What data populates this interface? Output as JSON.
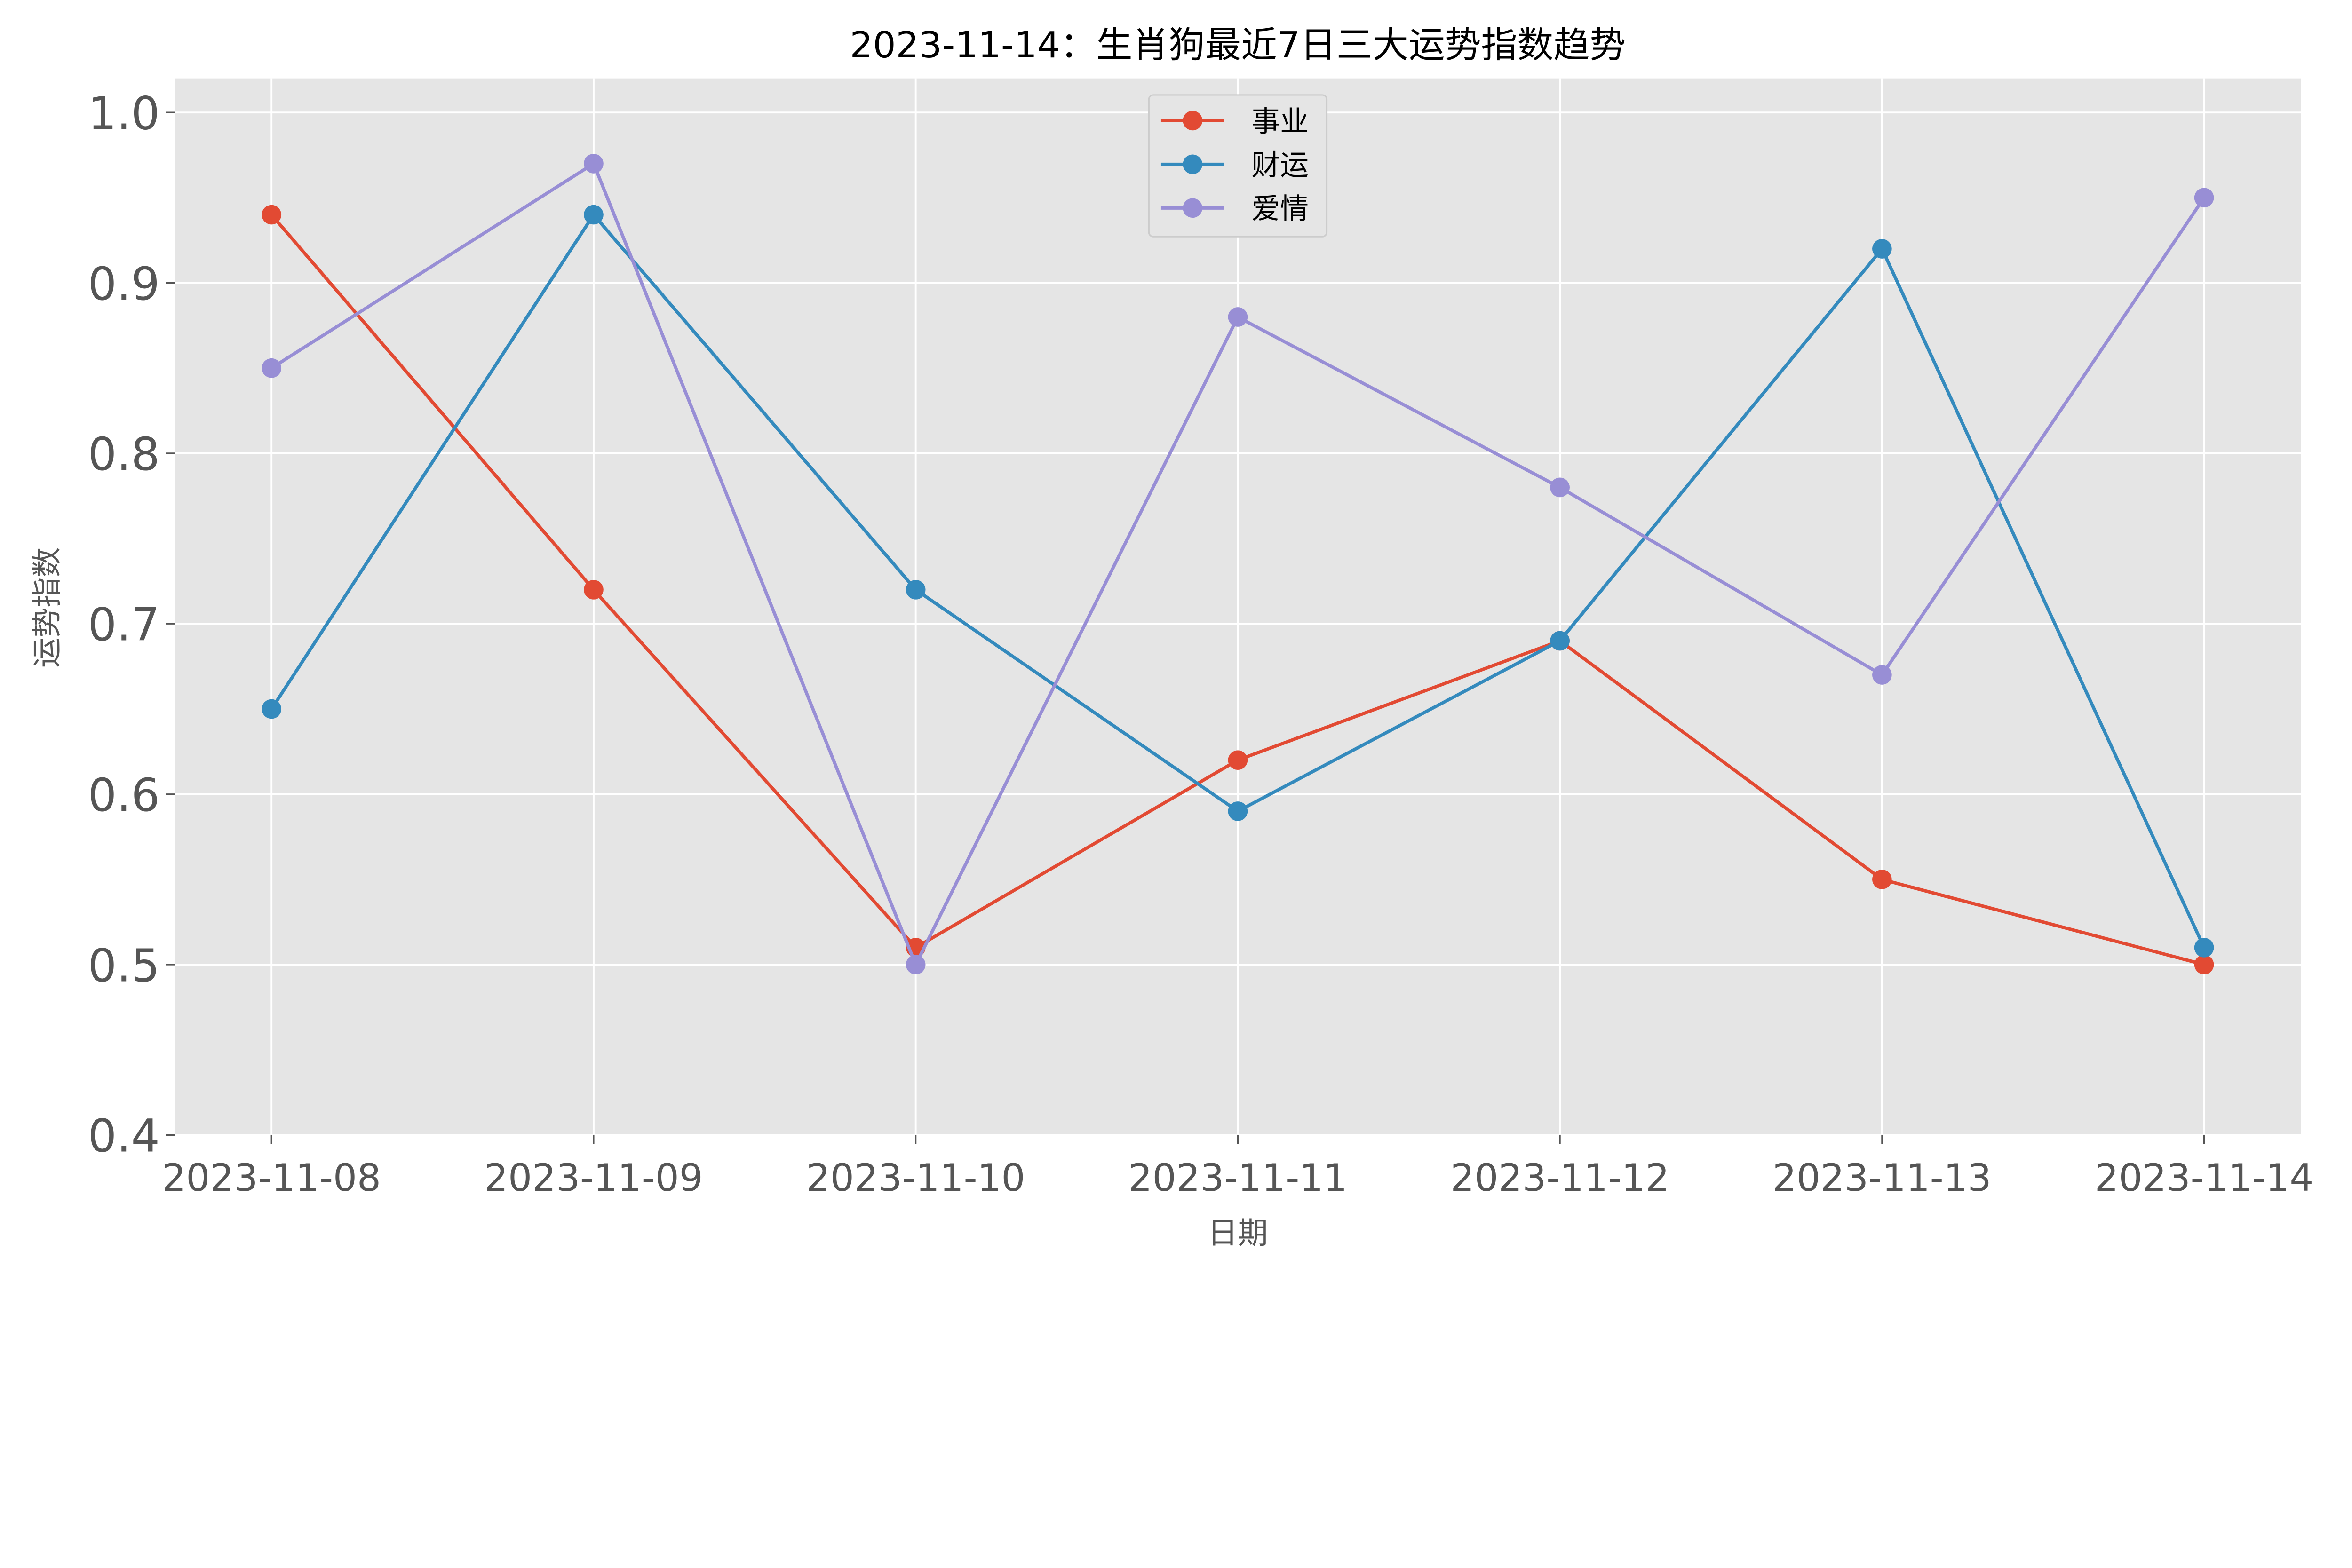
{
  "chart_data": {
    "type": "line",
    "title": "2023-11-14：生肖狗最近7日三大运势指数趋势",
    "xlabel": "日期",
    "ylabel": "运势指数",
    "categories": [
      "2023-11-08",
      "2023-11-09",
      "2023-11-10",
      "2023-11-11",
      "2023-11-12",
      "2023-11-13",
      "2023-11-14"
    ],
    "ylim": [
      0.4,
      1.02
    ],
    "yticks": [
      0.4,
      0.5,
      0.6,
      0.7,
      0.8,
      0.9,
      1.0
    ],
    "ytick_labels": [
      "0.4",
      "0.5",
      "0.6",
      "0.7",
      "0.8",
      "0.9",
      "1.0"
    ],
    "grid": true,
    "legend_position": "top-center",
    "series": [
      {
        "name": "事业",
        "color": "#E24A33",
        "values": [
          0.94,
          0.72,
          0.51,
          0.62,
          0.69,
          0.55,
          0.5
        ]
      },
      {
        "name": "财运",
        "color": "#348ABD",
        "values": [
          0.65,
          0.94,
          0.72,
          0.59,
          0.69,
          0.92,
          0.51
        ]
      },
      {
        "name": "爱情",
        "color": "#988ED5",
        "values": [
          0.85,
          0.97,
          0.5,
          0.88,
          0.78,
          0.67,
          0.95
        ]
      }
    ]
  }
}
